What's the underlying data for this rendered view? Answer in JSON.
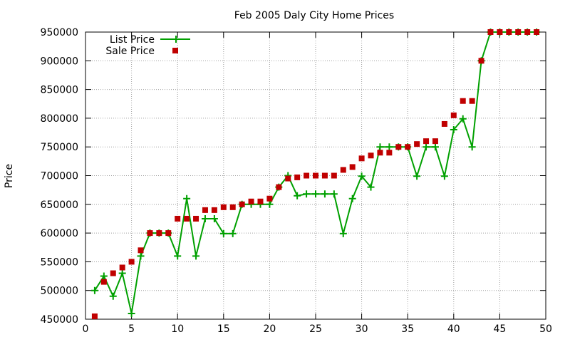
{
  "chart_data": {
    "type": "line",
    "title": "Feb 2005 Daly City Home Prices",
    "xlabel": "",
    "ylabel": "Price",
    "xlim": [
      0,
      50
    ],
    "ylim": [
      450000,
      950000
    ],
    "x_ticks": [
      0,
      5,
      10,
      15,
      20,
      25,
      30,
      35,
      40,
      45,
      50
    ],
    "y_ticks": [
      450000,
      500000,
      550000,
      600000,
      650000,
      700000,
      750000,
      800000,
      850000,
      900000,
      950000
    ],
    "x_tick_labels": [
      "0",
      "5",
      "10",
      "15",
      "20",
      "25",
      "30",
      "35",
      "40",
      "45",
      "50"
    ],
    "y_tick_labels": [
      "450000",
      "500000",
      "550000",
      "600000",
      "650000",
      "700000",
      "750000",
      "800000",
      "850000",
      "900000",
      "950000"
    ],
    "grid": true,
    "legend_position": "top-left",
    "x": [
      1,
      2,
      3,
      4,
      5,
      6,
      7,
      8,
      9,
      10,
      11,
      12,
      13,
      14,
      15,
      16,
      17,
      18,
      19,
      20,
      21,
      22,
      23,
      24,
      25,
      26,
      27,
      28,
      29,
      30,
      31,
      32,
      33,
      34,
      35,
      36,
      37,
      38,
      39,
      40,
      41,
      42,
      43,
      44,
      45,
      46,
      47,
      48,
      49
    ],
    "series": [
      {
        "name": "List Price",
        "style": "line-plus",
        "color": "#00a000",
        "values": [
          500000,
          525000,
          490000,
          530000,
          460000,
          560000,
          600000,
          600000,
          600000,
          560000,
          660000,
          560000,
          625000,
          625000,
          599000,
          599000,
          650000,
          650000,
          650000,
          650000,
          680000,
          700000,
          665000,
          668000,
          668000,
          668000,
          668000,
          599000,
          660000,
          699000,
          680000,
          750000,
          750000,
          750000,
          750000,
          699000,
          750000,
          750000,
          699000,
          780000,
          799000,
          750000,
          900000,
          950000,
          950000,
          950000,
          950000,
          950000,
          950000
        ]
      },
      {
        "name": "Sale Price",
        "style": "square",
        "color": "#c00000",
        "values": [
          455000,
          515000,
          530000,
          540000,
          550000,
          570000,
          600000,
          600000,
          600000,
          625000,
          625000,
          625000,
          640000,
          640000,
          645000,
          645000,
          650000,
          655000,
          655000,
          660000,
          680000,
          695000,
          697000,
          700000,
          700000,
          700000,
          700000,
          710000,
          715000,
          730000,
          735000,
          740000,
          740000,
          750000,
          750000,
          755000,
          760000,
          760000,
          790000,
          805000,
          830000,
          830000,
          900000,
          950000,
          950000,
          950000,
          950000,
          950000,
          950000
        ]
      }
    ]
  }
}
